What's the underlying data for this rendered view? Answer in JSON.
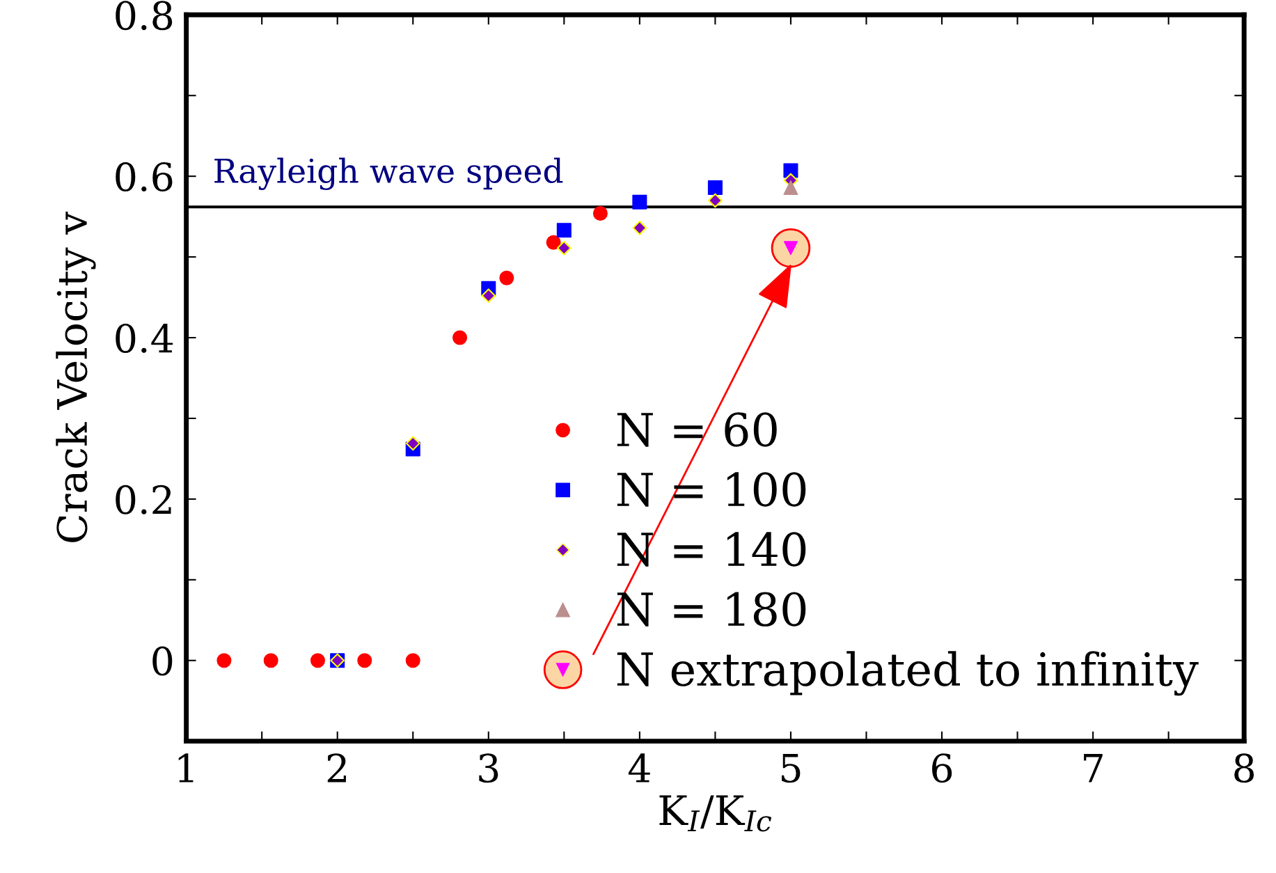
{
  "chart_data": {
    "type": "scatter",
    "xlabel": "K$_{I}$/K$_{Ic}$",
    "ylabel": "Crack Velocity v",
    "xlim": [
      1,
      8
    ],
    "ylim": [
      -0.1,
      0.8
    ],
    "xticks": [
      1,
      {
        "value": 1.5,
        "label": null
      },
      2,
      {
        "value": 2.5,
        "label": null
      },
      3,
      {
        "value": 3.5,
        "label": null
      },
      4,
      {
        "value": 4.5,
        "label": null
      },
      5,
      {
        "value": 5.5,
        "label": null
      },
      6,
      {
        "value": 6.5,
        "label": null
      },
      7,
      {
        "value": 7.5,
        "label": null
      },
      8
    ],
    "yticks": [
      {
        "value": -0.1,
        "label": null
      },
      0,
      {
        "value": 0.1,
        "label": null
      },
      0.2,
      {
        "value": 0.3,
        "label": null
      },
      0.4,
      {
        "value": 0.5,
        "label": null
      },
      0.6,
      {
        "value": 0.7,
        "label": null
      },
      0.8
    ],
    "grid": false,
    "legend": "bottom right",
    "series": [
      {
        "name": "N = 60",
        "color": "#ff0000",
        "marker": "circle",
        "x": [
          1.25,
          1.56,
          1.87,
          2.18,
          2.5,
          2.81,
          3.12,
          3.43,
          3.74
        ],
        "values": [
          0,
          0,
          0,
          0,
          0,
          0.4,
          0.474,
          0.518,
          0.554
        ]
      },
      {
        "name": "N = 100",
        "color": "#0000ff",
        "marker": "square",
        "x": [
          2,
          2.5,
          3,
          3.5,
          4,
          4.5,
          5
        ],
        "values": [
          0,
          0.262,
          0.461,
          0.533,
          0.568,
          0.586,
          0.607
        ]
      },
      {
        "name": "N = 140",
        "color": "#7f00bf",
        "marker": "diamond",
        "x": [
          2,
          2.5,
          3,
          3.5,
          4,
          4.5,
          5
        ],
        "values": [
          0,
          0.269,
          0.452,
          0.511,
          0.536,
          0.57,
          0.595
        ]
      },
      {
        "name": "N = 180",
        "color": "#bc8f8f",
        "marker": "triangle",
        "x": [
          5
        ],
        "values": [
          0.586
        ]
      },
      {
        "name": "N extrapolated to infinity",
        "color": "#ff00ff",
        "marker": "triangle_down",
        "x": [
          5
        ],
        "values": [
          0.511
        ]
      }
    ],
    "ref_lines": [
      {
        "axis": "y",
        "value": 0.562,
        "label": "Rayleigh wave speed",
        "color": "#000000"
      }
    ]
  }
}
